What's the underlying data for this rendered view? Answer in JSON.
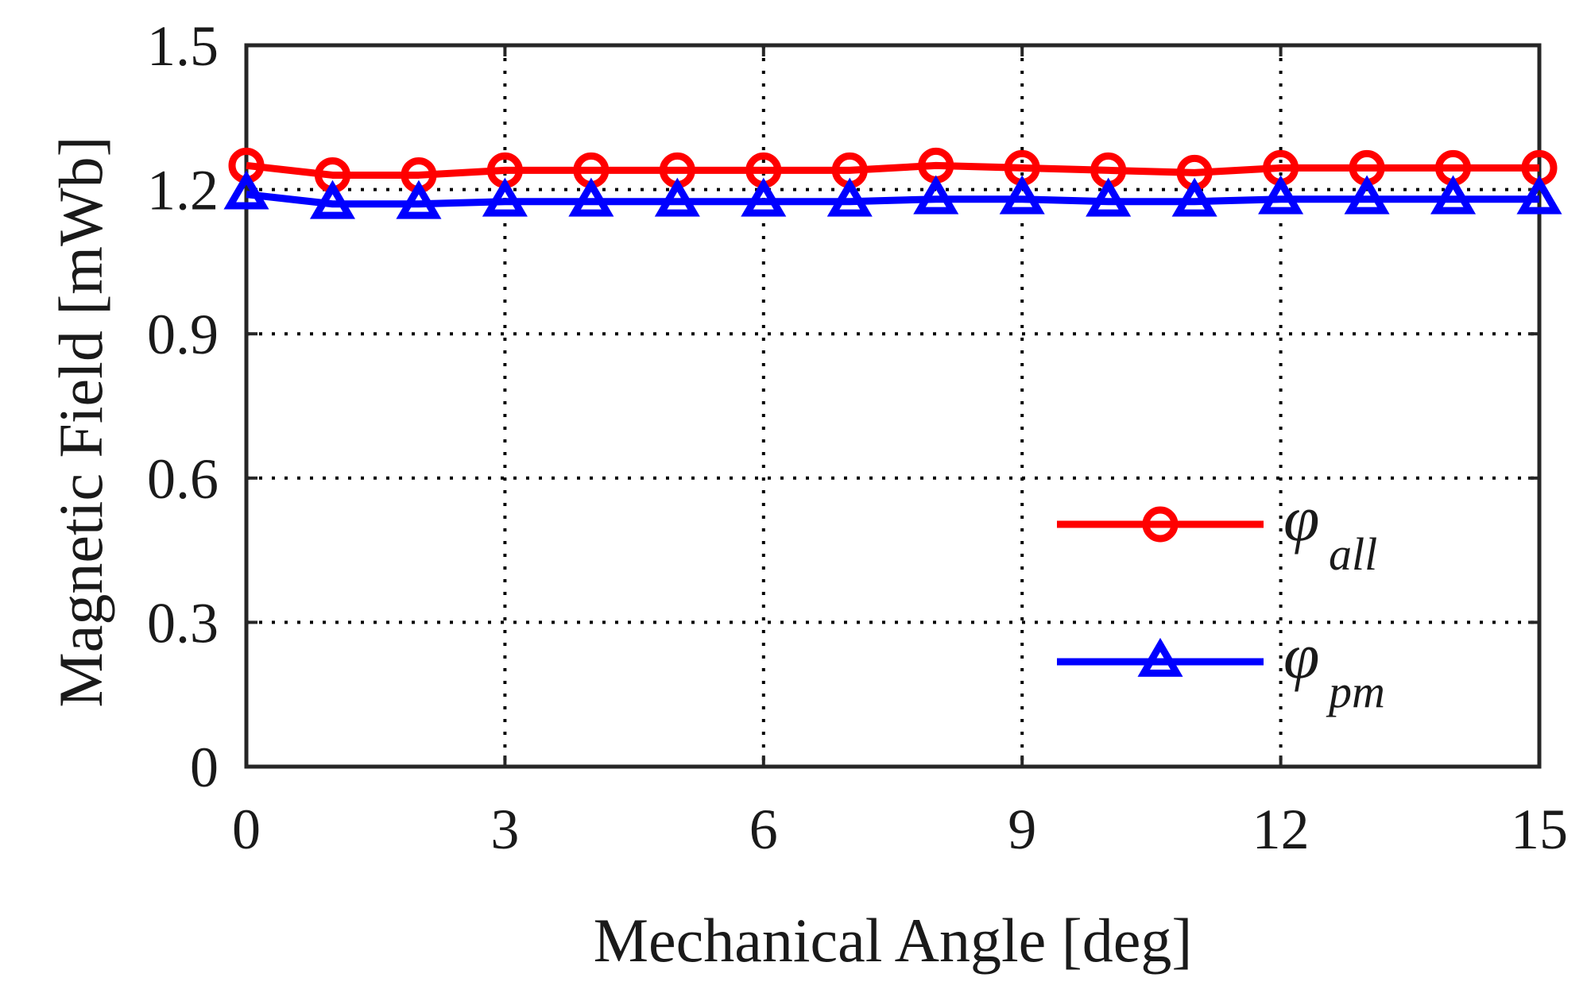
{
  "chart_data": {
    "type": "line",
    "title": "",
    "xlabel": "Mechanical Angle [deg]",
    "ylabel": "Magnetic Field [mWb]",
    "xlim": [
      0,
      15
    ],
    "ylim": [
      0,
      1.5
    ],
    "xticks": [
      "0",
      "3",
      "6",
      "9",
      "12",
      "15"
    ],
    "yticks": [
      "0",
      "0.3",
      "0.6",
      "0.9",
      "1.2",
      "1.5"
    ],
    "grid": true,
    "legend_position": "bottom-right",
    "x": [
      0,
      1,
      2,
      3,
      4,
      5,
      6,
      7,
      8,
      9,
      10,
      11,
      12,
      13,
      14,
      15
    ],
    "series": [
      {
        "name": "φ_all",
        "symbol": "φ",
        "subscript": "all",
        "color": "#ff0000",
        "marker": "circle",
        "values": [
          1.25,
          1.23,
          1.23,
          1.24,
          1.24,
          1.24,
          1.24,
          1.24,
          1.25,
          1.245,
          1.24,
          1.235,
          1.245,
          1.245,
          1.245,
          1.245
        ]
      },
      {
        "name": "φ_pm",
        "symbol": "φ",
        "subscript": "pm",
        "color": "#0000ff",
        "marker": "triangle",
        "values": [
          1.19,
          1.17,
          1.17,
          1.175,
          1.175,
          1.175,
          1.175,
          1.175,
          1.18,
          1.18,
          1.175,
          1.175,
          1.18,
          1.18,
          1.18,
          1.18
        ]
      }
    ]
  }
}
